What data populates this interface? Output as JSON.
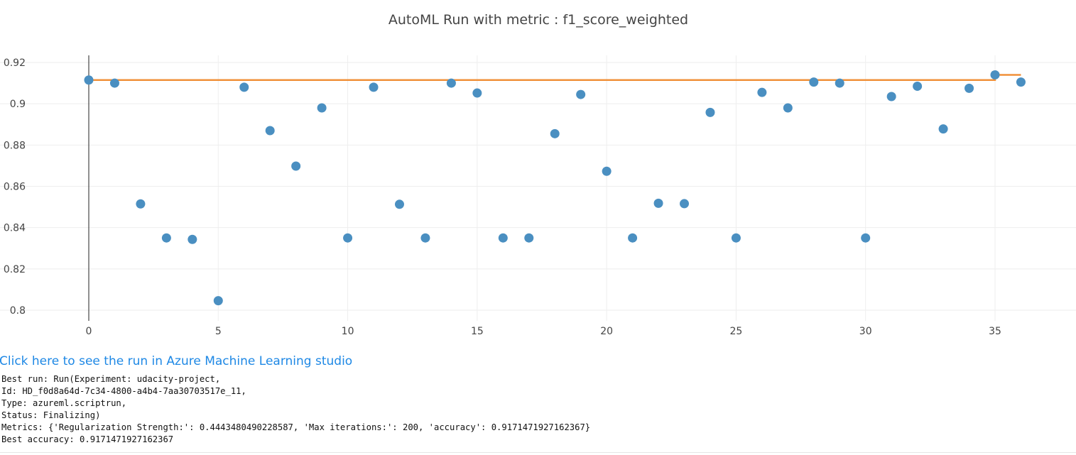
{
  "chart_data": {
    "type": "scatter",
    "title": "AutoML Run with metric : f1_score_weighted",
    "xlabel": "",
    "ylabel": "",
    "xlim": [
      -3,
      38
    ],
    "ylim": [
      0.795,
      0.926
    ],
    "x_ticks": [
      0,
      5,
      10,
      15,
      20,
      25,
      30,
      35
    ],
    "y_ticks": [
      0.8,
      0.82,
      0.84,
      0.86,
      0.88,
      0.9,
      0.92
    ],
    "y_tick_labels": [
      "0.8",
      "0.82",
      "0.84",
      "0.86",
      "0.88",
      "0.9",
      "0.92"
    ],
    "grid": true,
    "series": [
      {
        "mode": "markers",
        "color": "#4a8fc1",
        "x": [
          0,
          1,
          2,
          3,
          4,
          5,
          6,
          7,
          8,
          9,
          10,
          11,
          12,
          13,
          14,
          15,
          16,
          17,
          18,
          19,
          20,
          21,
          22,
          23,
          24,
          25,
          26,
          27,
          28,
          29,
          30,
          31,
          32,
          33,
          34,
          35,
          36
        ],
        "y": [
          0.9115,
          0.91,
          0.8515,
          0.835,
          0.8343,
          0.8046,
          0.908,
          0.887,
          0.8698,
          0.898,
          0.835,
          0.908,
          0.8513,
          0.835,
          0.91,
          0.9052,
          0.835,
          0.835,
          0.8855,
          0.9045,
          0.8673,
          0.835,
          0.8518,
          0.8516,
          0.8958,
          0.835,
          0.9055,
          0.898,
          0.9105,
          0.91,
          0.835,
          0.9035,
          0.9085,
          0.8878,
          0.9075,
          0.914,
          0.9105
        ]
      },
      {
        "mode": "step",
        "color": "#f0913a",
        "x": [
          0,
          35,
          35,
          36
        ],
        "y": [
          0.9115,
          0.9115,
          0.914,
          0.914
        ]
      }
    ]
  },
  "link": {
    "text": "Click here to see the run in Azure Machine Learning studio"
  },
  "output": {
    "lines": [
      "Best run: Run(Experiment: udacity-project,",
      "Id: HD_f0d8a64d-7c34-4800-a4b4-7aa30703517e_11,",
      "Type: azureml.scriptrun,",
      "Status: Finalizing)",
      "Metrics: {'Regularization Strength:': 0.4443480490228587, 'Max iterations:': 200, 'accuracy': 0.9171471927162367}",
      "Best accuracy: 0.9171471927162367"
    ]
  }
}
